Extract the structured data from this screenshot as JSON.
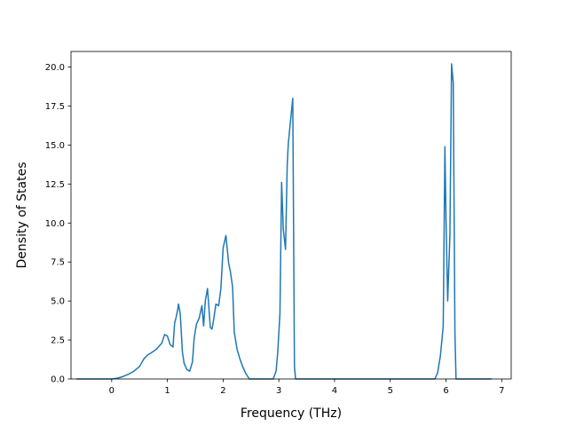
{
  "chart_data": {
    "type": "line",
    "title": "",
    "xlabel": "Frequency (THz)",
    "ylabel": "Density of States",
    "xlim": [
      -0.73,
      7.17
    ],
    "ylim": [
      0,
      21.0
    ],
    "grid": false,
    "x_ticks": [
      {
        "value": 0,
        "label": "0"
      },
      {
        "value": 1,
        "label": "1"
      },
      {
        "value": 2,
        "label": "2"
      },
      {
        "value": 3,
        "label": "3"
      },
      {
        "value": 4,
        "label": "4"
      },
      {
        "value": 5,
        "label": "5"
      },
      {
        "value": 6,
        "label": "6"
      },
      {
        "value": 7,
        "label": "7"
      }
    ],
    "y_ticks": [
      {
        "value": 0,
        "label": "0.0"
      },
      {
        "value": 2.5,
        "label": "2.5"
      },
      {
        "value": 5,
        "label": "5.0"
      },
      {
        "value": 7.5,
        "label": "7.5"
      },
      {
        "value": 10,
        "label": "10.0"
      },
      {
        "value": 12.5,
        "label": "12.5"
      },
      {
        "value": 15,
        "label": "15.0"
      },
      {
        "value": 17.5,
        "label": "17.5"
      },
      {
        "value": 20,
        "label": "20.0"
      }
    ],
    "series": [
      {
        "color": "#1f77b4",
        "x": [
          -0.63,
          0.0,
          0.1,
          0.2,
          0.3,
          0.4,
          0.5,
          0.58,
          0.65,
          0.7,
          0.8,
          0.9,
          0.95,
          1.0,
          1.05,
          1.1,
          1.13,
          1.15,
          1.18,
          1.2,
          1.23,
          1.27,
          1.3,
          1.35,
          1.4,
          1.45,
          1.48,
          1.52,
          1.57,
          1.62,
          1.65,
          1.68,
          1.72,
          1.77,
          1.8,
          1.83,
          1.87,
          1.92,
          1.96,
          2.0,
          2.05,
          2.1,
          2.13,
          2.17,
          2.2,
          2.25,
          2.3,
          2.35,
          2.4,
          2.47,
          2.9,
          2.95,
          2.98,
          3.02,
          3.05,
          3.08,
          3.12,
          3.15,
          3.17,
          3.2,
          3.25,
          3.28,
          3.3,
          3.33,
          3.4,
          3.5,
          5.8,
          5.85,
          5.9,
          5.95,
          5.98,
          6.0,
          6.03,
          6.07,
          6.1,
          6.13,
          6.16,
          6.18,
          6.2,
          6.82
        ],
        "y": [
          0,
          0,
          0.05,
          0.15,
          0.3,
          0.5,
          0.8,
          1.3,
          1.55,
          1.65,
          1.9,
          2.3,
          2.85,
          2.75,
          2.2,
          2.05,
          3.6,
          3.85,
          4.35,
          4.8,
          4.2,
          1.7,
          1.0,
          0.6,
          0.5,
          1.1,
          2.6,
          3.5,
          3.9,
          4.7,
          3.4,
          5.0,
          5.8,
          3.3,
          3.2,
          3.8,
          4.8,
          4.7,
          5.8,
          8.4,
          9.2,
          7.4,
          6.9,
          5.9,
          3.0,
          1.9,
          1.3,
          0.8,
          0.4,
          0,
          0,
          0.5,
          1.7,
          4.2,
          12.6,
          9.6,
          8.3,
          13.7,
          15.1,
          16.2,
          18.0,
          0.8,
          0,
          0,
          0,
          0,
          0,
          0.4,
          1.5,
          3.4,
          14.9,
          10.3,
          5.0,
          9.2,
          20.2,
          19.0,
          3.0,
          0,
          0,
          0
        ]
      }
    ]
  }
}
